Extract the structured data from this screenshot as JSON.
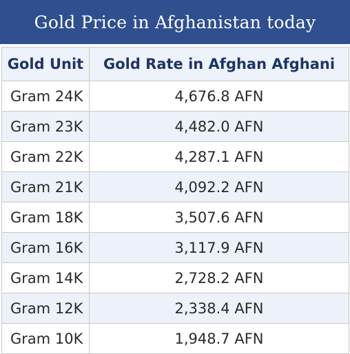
{
  "title": "Gold Price in Afghanistan today",
  "table": {
    "headers": [
      "Gold Unit",
      "Gold Rate in Afghan Afghani"
    ],
    "rows": [
      {
        "unit": "Gram 24K",
        "rate": "4,676.8 AFN"
      },
      {
        "unit": "Gram 23K",
        "rate": "4,482.0 AFN"
      },
      {
        "unit": "Gram 22K",
        "rate": "4,287.1 AFN"
      },
      {
        "unit": "Gram 21K",
        "rate": "4,092.2 AFN"
      },
      {
        "unit": "Gram 18K",
        "rate": "3,507.6 AFN"
      },
      {
        "unit": "Gram 16K",
        "rate": "3,117.9 AFN"
      },
      {
        "unit": "Gram 14K",
        "rate": "2,728.2 AFN"
      },
      {
        "unit": "Gram 12K",
        "rate": "2,338.4 AFN"
      },
      {
        "unit": "Gram 10K",
        "rate": "1,948.7 AFN"
      }
    ]
  },
  "colors": {
    "title_bar": "#2f4f8f",
    "header_text": "#1f3466",
    "stripe": "#edf1fa"
  }
}
